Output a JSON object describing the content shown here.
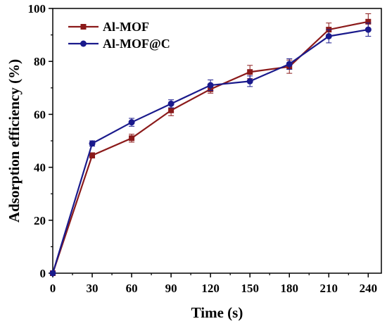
{
  "chart_data": {
    "type": "line",
    "xlabel": "Time (s)",
    "ylabel": "Adsorption efficiency (%)",
    "xlim": [
      0,
      250
    ],
    "ylim": [
      0,
      100
    ],
    "x_ticks": [
      0,
      30,
      60,
      90,
      120,
      150,
      180,
      210,
      240
    ],
    "y_ticks": [
      0,
      20,
      40,
      60,
      80,
      100
    ],
    "legend_position": "top-left",
    "grid": false,
    "series": [
      {
        "name": "Al-MOF",
        "color": "#8b1a1a",
        "marker": "square",
        "x": [
          0,
          30,
          60,
          90,
          120,
          150,
          180,
          210,
          240
        ],
        "y": [
          0,
          44.5,
          51,
          61.5,
          69.5,
          76,
          78,
          92,
          95
        ],
        "error": [
          0,
          1.0,
          1.5,
          2.0,
          1.5,
          2.5,
          2.5,
          2.5,
          3.0
        ]
      },
      {
        "name": "Al-MOF@C",
        "color": "#1a1a8c",
        "marker": "circle",
        "x": [
          0,
          30,
          60,
          90,
          120,
          150,
          180,
          210,
          240
        ],
        "y": [
          0,
          49,
          57,
          64,
          71,
          72.5,
          79,
          89.5,
          92
        ],
        "error": [
          0,
          1.0,
          1.5,
          1.5,
          2.0,
          2.0,
          2.0,
          2.5,
          2.5
        ]
      }
    ]
  }
}
